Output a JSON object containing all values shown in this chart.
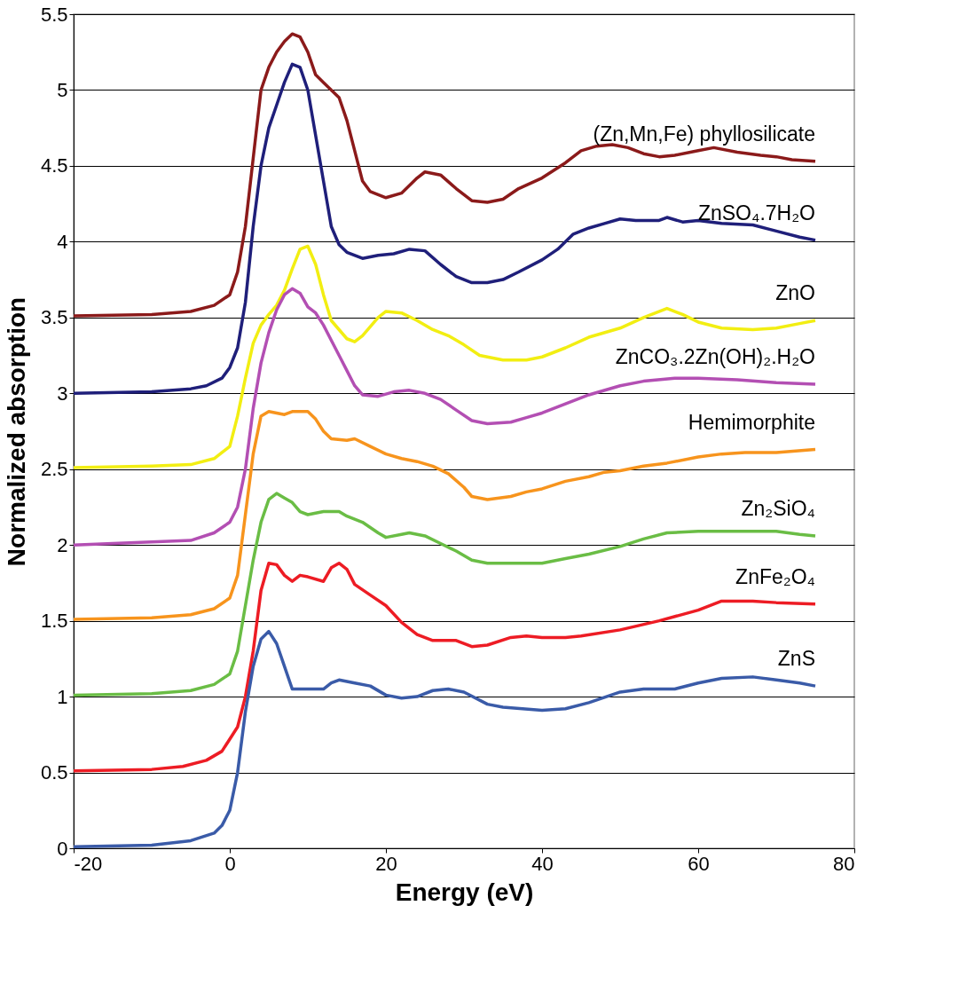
{
  "chart_data": {
    "type": "line",
    "xlabel": "Energy (eV)",
    "ylabel": "Normalized absorption",
    "xlim": [
      -20,
      80
    ],
    "xticks": [
      -20,
      0,
      20,
      40,
      60,
      80
    ],
    "ylim": [
      0,
      5.5
    ],
    "yticks": [
      0,
      0.5,
      1,
      1.5,
      2,
      2.5,
      3,
      3.5,
      4,
      4.5,
      5,
      5.5
    ],
    "grid": "y",
    "series": [
      {
        "name": "(Zn,Mn,Fe) phyllosilicate",
        "color": "#8b1a1a",
        "x": [
          -20,
          -10,
          -5,
          -2,
          0,
          1,
          2,
          3,
          4,
          5,
          6,
          7,
          8,
          9,
          10,
          11,
          12,
          14,
          15,
          16,
          17,
          18,
          20,
          22,
          24,
          25,
          27,
          29,
          31,
          33,
          35,
          37,
          40,
          43,
          45,
          47,
          49,
          51,
          53,
          55,
          57,
          60,
          62,
          65,
          68,
          70,
          72,
          75
        ],
        "values": [
          3.51,
          3.52,
          3.54,
          3.58,
          3.65,
          3.8,
          4.1,
          4.55,
          5.0,
          5.15,
          5.25,
          5.32,
          5.37,
          5.35,
          5.25,
          5.1,
          5.05,
          4.95,
          4.8,
          4.6,
          4.4,
          4.33,
          4.29,
          4.32,
          4.42,
          4.46,
          4.44,
          4.35,
          4.27,
          4.26,
          4.28,
          4.35,
          4.42,
          4.52,
          4.6,
          4.63,
          4.64,
          4.62,
          4.58,
          4.56,
          4.57,
          4.6,
          4.62,
          4.59,
          4.57,
          4.56,
          4.54,
          4.53
        ]
      },
      {
        "name": "ZnSO₄.7H₂O",
        "color": "#1f1f7a",
        "x": [
          -20,
          -10,
          -5,
          -3,
          -1,
          0,
          1,
          2,
          3,
          4,
          5,
          6,
          7,
          8,
          9,
          10,
          11,
          12,
          13,
          14,
          15,
          17,
          19,
          21,
          23,
          25,
          27,
          29,
          31,
          33,
          35,
          37,
          40,
          42,
          44,
          46,
          48,
          50,
          52,
          55,
          56,
          58,
          60,
          63,
          67,
          70,
          73,
          75
        ],
        "values": [
          3.0,
          3.01,
          3.03,
          3.05,
          3.1,
          3.17,
          3.3,
          3.6,
          4.1,
          4.5,
          4.75,
          4.9,
          5.05,
          5.17,
          5.15,
          5.0,
          4.7,
          4.4,
          4.1,
          3.98,
          3.93,
          3.89,
          3.91,
          3.92,
          3.95,
          3.94,
          3.85,
          3.77,
          3.73,
          3.73,
          3.75,
          3.8,
          3.88,
          3.95,
          4.05,
          4.09,
          4.12,
          4.15,
          4.14,
          4.14,
          4.16,
          4.13,
          4.14,
          4.12,
          4.11,
          4.07,
          4.03,
          4.01
        ]
      },
      {
        "name": "ZnO",
        "color": "#f2ee12",
        "x": [
          -20,
          -10,
          -5,
          -2,
          0,
          1,
          2,
          3,
          4,
          5,
          6,
          7,
          8,
          9,
          10,
          11,
          12,
          13,
          14,
          15,
          16,
          17,
          19,
          20,
          22,
          24,
          26,
          28,
          30,
          32,
          35,
          38,
          40,
          43,
          46,
          50,
          53,
          56,
          58,
          60,
          63,
          67,
          70,
          73,
          75
        ],
        "values": [
          2.51,
          2.52,
          2.53,
          2.57,
          2.65,
          2.85,
          3.1,
          3.33,
          3.45,
          3.52,
          3.58,
          3.68,
          3.82,
          3.95,
          3.97,
          3.85,
          3.65,
          3.48,
          3.42,
          3.36,
          3.34,
          3.38,
          3.5,
          3.54,
          3.53,
          3.48,
          3.42,
          3.38,
          3.32,
          3.25,
          3.22,
          3.22,
          3.24,
          3.3,
          3.37,
          3.43,
          3.5,
          3.56,
          3.52,
          3.47,
          3.43,
          3.42,
          3.43,
          3.46,
          3.48
        ]
      },
      {
        "name": "ZnCO₃.2Zn(OH)₂.H₂O",
        "color": "#b34fb3",
        "x": [
          -20,
          -10,
          -5,
          -2,
          0,
          1,
          2,
          3,
          4,
          5,
          6,
          7,
          8,
          9,
          10,
          11,
          12,
          13,
          14,
          15,
          16,
          17,
          19,
          21,
          23,
          25,
          27,
          29,
          31,
          33,
          36,
          38,
          40,
          43,
          46,
          50,
          53,
          57,
          60,
          65,
          70,
          75
        ],
        "values": [
          2.0,
          2.02,
          2.03,
          2.08,
          2.15,
          2.25,
          2.5,
          2.9,
          3.2,
          3.4,
          3.55,
          3.65,
          3.69,
          3.66,
          3.57,
          3.53,
          3.45,
          3.35,
          3.25,
          3.15,
          3.05,
          2.99,
          2.98,
          3.01,
          3.02,
          3.0,
          2.96,
          2.89,
          2.82,
          2.8,
          2.81,
          2.84,
          2.87,
          2.93,
          2.99,
          3.05,
          3.08,
          3.1,
          3.1,
          3.09,
          3.07,
          3.06
        ]
      },
      {
        "name": "Hemimorphite",
        "color": "#f7941d",
        "x": [
          -20,
          -10,
          -5,
          -2,
          0,
          1,
          2,
          3,
          4,
          5,
          6,
          7,
          8,
          10,
          11,
          12,
          13,
          15,
          16,
          18,
          20,
          22,
          24,
          26,
          28,
          30,
          31,
          33,
          36,
          38,
          40,
          43,
          46,
          48,
          50,
          53,
          56,
          60,
          63,
          66,
          70,
          75
        ],
        "values": [
          1.51,
          1.52,
          1.54,
          1.58,
          1.65,
          1.8,
          2.2,
          2.6,
          2.85,
          2.88,
          2.87,
          2.86,
          2.88,
          2.88,
          2.83,
          2.75,
          2.7,
          2.69,
          2.7,
          2.65,
          2.6,
          2.57,
          2.55,
          2.52,
          2.47,
          2.38,
          2.32,
          2.3,
          2.32,
          2.35,
          2.37,
          2.42,
          2.45,
          2.48,
          2.49,
          2.52,
          2.54,
          2.58,
          2.6,
          2.61,
          2.61,
          2.63
        ]
      },
      {
        "name": "Zn₂SiO₄",
        "color": "#6abd45",
        "x": [
          -20,
          -10,
          -5,
          -2,
          0,
          1,
          2,
          3,
          4,
          5,
          6,
          7,
          8,
          9,
          10,
          12,
          14,
          15,
          17,
          19,
          20,
          22,
          23,
          25,
          27,
          29,
          31,
          33,
          36,
          40,
          43,
          46,
          50,
          53,
          56,
          60,
          65,
          70,
          73,
          75
        ],
        "values": [
          1.01,
          1.02,
          1.04,
          1.08,
          1.15,
          1.3,
          1.6,
          1.9,
          2.15,
          2.3,
          2.34,
          2.31,
          2.28,
          2.22,
          2.2,
          2.22,
          2.22,
          2.19,
          2.15,
          2.08,
          2.05,
          2.07,
          2.08,
          2.06,
          2.01,
          1.96,
          1.9,
          1.88,
          1.88,
          1.88,
          1.91,
          1.94,
          1.99,
          2.04,
          2.08,
          2.09,
          2.09,
          2.09,
          2.07,
          2.06
        ]
      },
      {
        "name": "ZnFe₂O₄",
        "color": "#ed1c24",
        "x": [
          -20,
          -10,
          -6,
          -3,
          -1,
          0,
          1,
          2,
          3,
          4,
          5,
          6,
          7,
          8,
          9,
          10,
          12,
          13,
          14,
          15,
          16,
          18,
          20,
          22,
          24,
          26,
          29,
          31,
          33,
          36,
          38,
          40,
          43,
          45,
          50,
          55,
          60,
          63,
          67,
          70,
          75
        ],
        "values": [
          0.51,
          0.52,
          0.54,
          0.58,
          0.64,
          0.72,
          0.8,
          1.0,
          1.3,
          1.7,
          1.88,
          1.87,
          1.8,
          1.76,
          1.8,
          1.79,
          1.76,
          1.85,
          1.88,
          1.84,
          1.74,
          1.67,
          1.6,
          1.49,
          1.41,
          1.37,
          1.37,
          1.33,
          1.34,
          1.39,
          1.4,
          1.39,
          1.39,
          1.4,
          1.44,
          1.5,
          1.57,
          1.63,
          1.63,
          1.62,
          1.61
        ]
      },
      {
        "name": "ZnS",
        "color": "#3a5ba8",
        "x": [
          -20,
          -10,
          -5,
          -2,
          -1,
          0,
          1,
          2,
          3,
          4,
          5,
          6,
          7,
          8,
          9,
          12,
          13,
          14,
          16,
          18,
          20,
          22,
          24,
          26,
          28,
          30,
          33,
          35,
          40,
          43,
          46,
          50,
          53,
          57,
          60,
          63,
          67,
          70,
          73,
          75
        ],
        "values": [
          0.01,
          0.02,
          0.05,
          0.1,
          0.15,
          0.25,
          0.5,
          0.9,
          1.2,
          1.38,
          1.43,
          1.35,
          1.2,
          1.05,
          1.05,
          1.05,
          1.09,
          1.11,
          1.09,
          1.07,
          1.01,
          0.99,
          1.0,
          1.04,
          1.05,
          1.03,
          0.95,
          0.93,
          0.91,
          0.92,
          0.96,
          1.03,
          1.05,
          1.05,
          1.09,
          1.12,
          1.13,
          1.11,
          1.09,
          1.07
        ]
      }
    ]
  }
}
